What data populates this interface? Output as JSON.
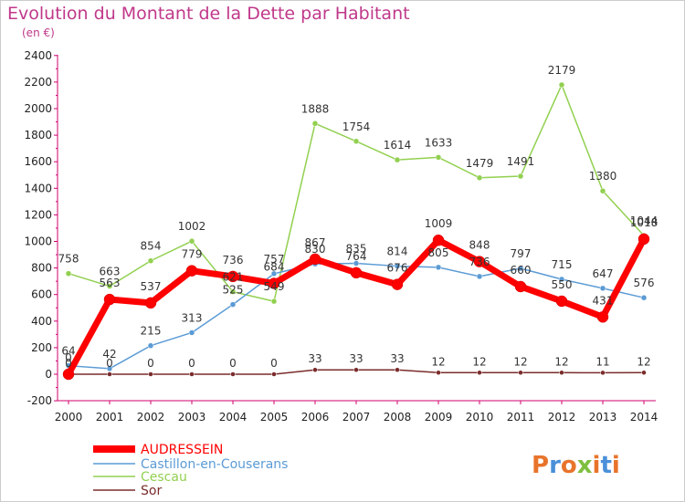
{
  "chart_data": {
    "type": "line",
    "title": "Evolution du Montant de la Dette par Habitant",
    "subtitle": "(en €)",
    "x": [
      "2000",
      "2001",
      "2002",
      "2003",
      "2004",
      "2005",
      "2006",
      "2007",
      "2008",
      "2009",
      "2010",
      "2011",
      "2012",
      "2013",
      "2014"
    ],
    "yticks": [
      -200,
      0,
      200,
      400,
      600,
      800,
      1000,
      1200,
      1400,
      1600,
      1800,
      2000,
      2200,
      2400
    ],
    "ylim": [
      -200,
      2400
    ],
    "grid": false,
    "legend": "bottom-left",
    "series": [
      {
        "name": "AUDRESSEIN",
        "color": "#ff0000",
        "values": [
          0,
          563,
          537,
          779,
          736,
          684,
          867,
          764,
          676,
          1009,
          848,
          660,
          550,
          431,
          1018
        ]
      },
      {
        "name": "Castillon-en-Couserans",
        "color": "#5b9bd5",
        "values": [
          64,
          42,
          215,
          313,
          525,
          757,
          830,
          835,
          814,
          805,
          736,
          797,
          715,
          647,
          576
        ]
      },
      {
        "name": "Cescau",
        "color": "#92d050",
        "values": [
          758,
          663,
          854,
          1002,
          621,
          549,
          1888,
          1754,
          1614,
          1633,
          1479,
          1491,
          2179,
          1380,
          1044
        ]
      },
      {
        "name": "Sor",
        "color": "#7b2c2c",
        "values": [
          0,
          0,
          0,
          0,
          0,
          0,
          33,
          33,
          33,
          12,
          12,
          12,
          12,
          11,
          12
        ]
      }
    ],
    "value_labels": [
      [
        "0",
        "563",
        "537",
        "779",
        "736",
        "684",
        "867",
        "764",
        "676",
        "1009",
        "848",
        "660",
        "550",
        "431",
        "1018"
      ],
      [
        "64",
        "42",
        "215",
        "313",
        "525",
        "757",
        "830",
        "835",
        "814",
        "805",
        "736",
        "797",
        "715",
        "647",
        "576"
      ],
      [
        "758",
        "663",
        "854",
        "1002",
        "621",
        "549",
        "1888",
        "1754",
        "1614",
        "1633",
        "1479",
        "1491",
        "2179",
        "1380",
        "1044"
      ],
      [
        "0",
        "0",
        "0",
        "0",
        "0",
        "0",
        "33",
        "33",
        "33",
        "12",
        "12",
        "12",
        "12",
        "11",
        "12"
      ]
    ]
  },
  "logo": {
    "text": "Proxiti",
    "colors": [
      "#e8742b",
      "#4a90d9",
      "#e8742b",
      "#7fbf3f",
      "#e8742b",
      "#4a90d9",
      "#e8742b"
    ]
  }
}
